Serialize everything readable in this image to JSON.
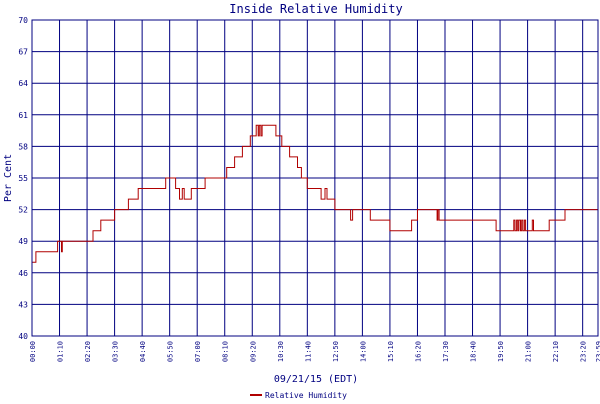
{
  "chart_data": {
    "type": "line",
    "title": "Inside Relative Humidity",
    "xlabel": "09/21/15 (EDT)",
    "ylabel": "Per Cent",
    "ylim": [
      40,
      70
    ],
    "yticks": [
      "40",
      "43",
      "46",
      "49",
      "52",
      "55",
      "58",
      "61",
      "64",
      "67",
      "70"
    ],
    "xticks": [
      "00:00",
      "01:10",
      "02:20",
      "03:30",
      "04:40",
      "05:50",
      "07:00",
      "08:10",
      "09:20",
      "10:30",
      "11:40",
      "12:50",
      "14:00",
      "15:10",
      "16:20",
      "17:30",
      "18:40",
      "19:50",
      "21:00",
      "22:10",
      "23:20",
      "23:59"
    ],
    "grid": true,
    "legend": "bottom",
    "colors": {
      "series": "#b00000",
      "grid": "#000080",
      "text": "#000080"
    },
    "series": [
      {
        "name": "Relative Humidity",
        "points": [
          [
            "00:00",
            47
          ],
          [
            "00:10",
            47
          ],
          [
            "00:10",
            48
          ],
          [
            "00:35",
            48
          ],
          [
            "00:35",
            48
          ],
          [
            "01:05",
            48
          ],
          [
            "01:05",
            49
          ],
          [
            "01:15",
            49
          ],
          [
            "01:15",
            48
          ],
          [
            "01:17",
            48
          ],
          [
            "01:17",
            49
          ],
          [
            "02:35",
            49
          ],
          [
            "02:35",
            50
          ],
          [
            "02:55",
            50
          ],
          [
            "02:55",
            51
          ],
          [
            "03:30",
            51
          ],
          [
            "03:30",
            52
          ],
          [
            "04:05",
            52
          ],
          [
            "04:05",
            53
          ],
          [
            "04:30",
            53
          ],
          [
            "04:30",
            54
          ],
          [
            "05:40",
            54
          ],
          [
            "05:40",
            55
          ],
          [
            "06:05",
            55
          ],
          [
            "06:05",
            54
          ],
          [
            "06:15",
            54
          ],
          [
            "06:15",
            53
          ],
          [
            "06:22",
            53
          ],
          [
            "06:22",
            54
          ],
          [
            "06:27",
            54
          ],
          [
            "06:27",
            53
          ],
          [
            "06:45",
            53
          ],
          [
            "06:45",
            54
          ],
          [
            "07:20",
            54
          ],
          [
            "07:20",
            55
          ],
          [
            "08:15",
            55
          ],
          [
            "08:15",
            56
          ],
          [
            "08:35",
            56
          ],
          [
            "08:35",
            57
          ],
          [
            "08:55",
            57
          ],
          [
            "08:55",
            58
          ],
          [
            "09:15",
            58
          ],
          [
            "09:15",
            59
          ],
          [
            "09:30",
            59
          ],
          [
            "09:30",
            60
          ],
          [
            "09:35",
            60
          ],
          [
            "09:35",
            59
          ],
          [
            "09:38",
            59
          ],
          [
            "09:38",
            60
          ],
          [
            "09:42",
            60
          ],
          [
            "09:42",
            59
          ],
          [
            "09:45",
            59
          ],
          [
            "09:45",
            60
          ],
          [
            "10:20",
            60
          ],
          [
            "10:20",
            59
          ],
          [
            "10:35",
            59
          ],
          [
            "10:35",
            58
          ],
          [
            "10:55",
            58
          ],
          [
            "10:55",
            57
          ],
          [
            "11:15",
            57
          ],
          [
            "11:15",
            56
          ],
          [
            "11:25",
            56
          ],
          [
            "11:25",
            55
          ],
          [
            "11:40",
            55
          ],
          [
            "11:40",
            54
          ],
          [
            "12:15",
            54
          ],
          [
            "12:15",
            53
          ],
          [
            "12:25",
            53
          ],
          [
            "12:25",
            54
          ],
          [
            "12:30",
            54
          ],
          [
            "12:30",
            53
          ],
          [
            "12:50",
            53
          ],
          [
            "12:50",
            52
          ],
          [
            "13:30",
            52
          ],
          [
            "13:30",
            51
          ],
          [
            "13:35",
            51
          ],
          [
            "13:35",
            52
          ],
          [
            "14:20",
            52
          ],
          [
            "14:20",
            51
          ],
          [
            "15:10",
            51
          ],
          [
            "15:10",
            50
          ],
          [
            "16:05",
            50
          ],
          [
            "16:05",
            51
          ],
          [
            "16:20",
            51
          ],
          [
            "16:20",
            52
          ],
          [
            "17:10",
            52
          ],
          [
            "17:10",
            51
          ],
          [
            "17:12",
            51
          ],
          [
            "17:12",
            52
          ],
          [
            "17:15",
            52
          ],
          [
            "17:15",
            51
          ],
          [
            "19:40",
            51
          ],
          [
            "19:40",
            50
          ],
          [
            "20:25",
            50
          ],
          [
            "20:25",
            51
          ],
          [
            "20:28",
            51
          ],
          [
            "20:28",
            50
          ],
          [
            "20:32",
            50
          ],
          [
            "20:32",
            51
          ],
          [
            "20:35",
            51
          ],
          [
            "20:35",
            50
          ],
          [
            "20:38",
            50
          ],
          [
            "20:38",
            51
          ],
          [
            "20:42",
            51
          ],
          [
            "20:42",
            50
          ],
          [
            "20:45",
            50
          ],
          [
            "20:45",
            51
          ],
          [
            "20:48",
            51
          ],
          [
            "20:48",
            50
          ],
          [
            "20:52",
            50
          ],
          [
            "20:52",
            51
          ],
          [
            "20:55",
            51
          ],
          [
            "20:55",
            50
          ],
          [
            "21:12",
            50
          ],
          [
            "21:12",
            51
          ],
          [
            "21:15",
            51
          ],
          [
            "21:15",
            50
          ],
          [
            "21:55",
            50
          ],
          [
            "21:55",
            51
          ],
          [
            "22:35",
            51
          ],
          [
            "22:35",
            52
          ],
          [
            "23:59",
            52
          ]
        ]
      }
    ]
  }
}
